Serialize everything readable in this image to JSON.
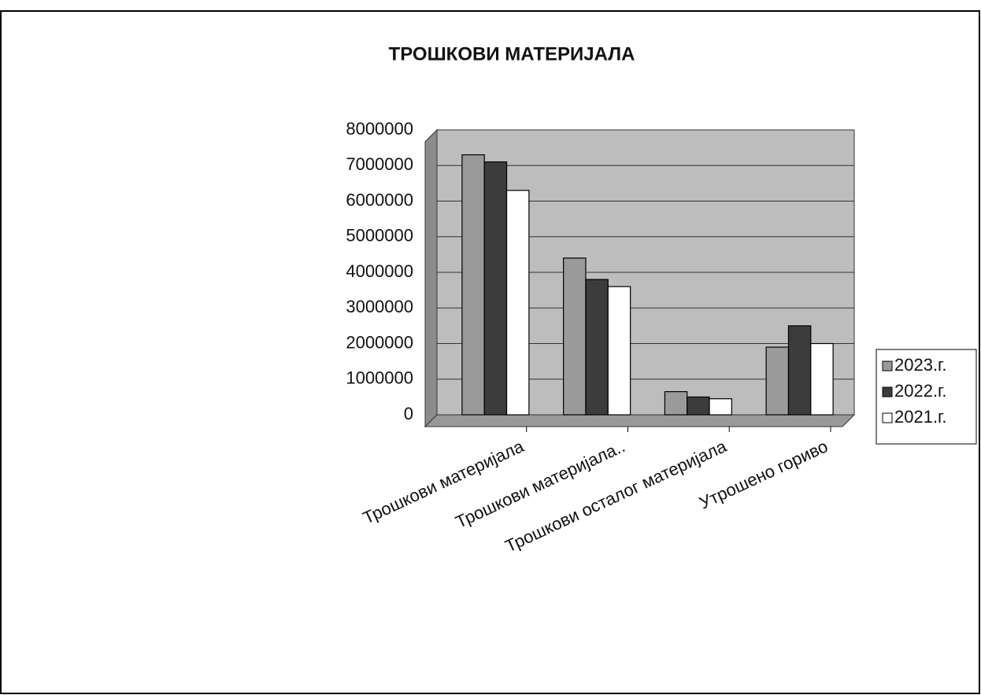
{
  "chart_data": {
    "type": "bar",
    "title": "ТРОШКОВИ МАТЕРИЈАЛА",
    "categories": [
      "Трошкови материјала",
      "Трошкови материјала..",
      "Трошкови осталог материјала",
      "Утрошено гориво"
    ],
    "series": [
      {
        "name": "2023.г.",
        "color": "#9a9a9a",
        "values": [
          7300000,
          4400000,
          650000,
          1900000
        ]
      },
      {
        "name": "2022.г.",
        "color": "#3c3c3c",
        "values": [
          7100000,
          3800000,
          500000,
          2500000
        ]
      },
      {
        "name": "2021.г.",
        "color": "#ffffff",
        "values": [
          6300000,
          3600000,
          450000,
          2000000
        ]
      }
    ],
    "ylim": [
      0,
      8000000
    ],
    "yticks": [
      0,
      1000000,
      2000000,
      3000000,
      4000000,
      5000000,
      6000000,
      7000000,
      8000000
    ],
    "grid": true,
    "legend": "right"
  }
}
